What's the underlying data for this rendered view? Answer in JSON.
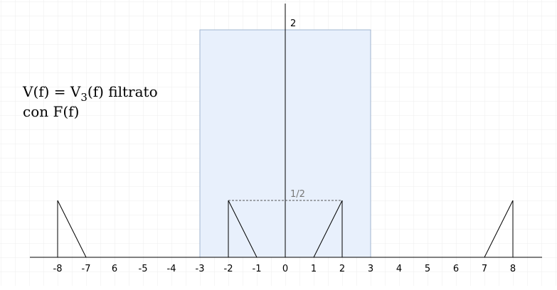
{
  "caption": {
    "line1_start": "V(f) = V",
    "line1_sub": "3",
    "line1_end": "(f) filtrato",
    "line2": "con F(f)"
  },
  "axis": {
    "ticks": [
      "-8",
      "-7",
      "6",
      "-5",
      "-4",
      "-3",
      "-2",
      "-1",
      "0",
      "1",
      "2",
      "3",
      "4",
      "5",
      "6",
      "7",
      "8"
    ]
  },
  "labels": {
    "peak": "2",
    "half": "1/2"
  }
}
